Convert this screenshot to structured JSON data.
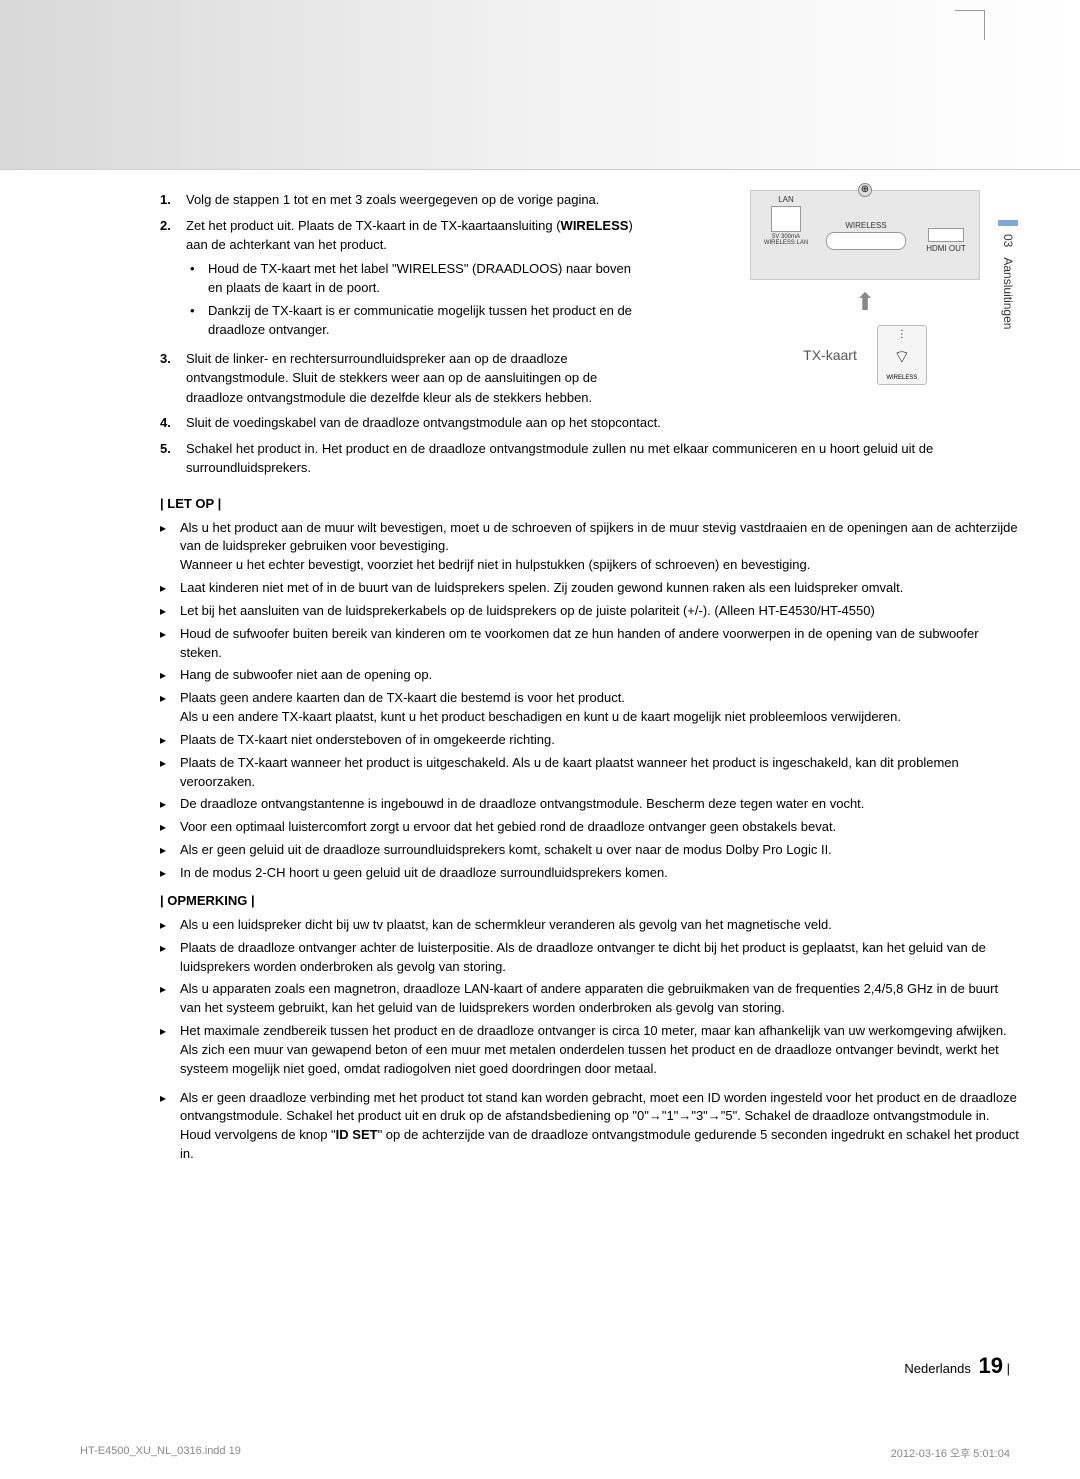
{
  "sideTab": {
    "num": "03",
    "label": "Aansluitingen"
  },
  "steps": [
    {
      "num": "1.",
      "text": "Volg de stappen 1 tot en met 3 zoals weergegeven op de vorige pagina."
    },
    {
      "num": "2.",
      "text_before": "Zet het product uit. Plaats de TX-kaart in de TX-kaartaansluiting (",
      "bold": "WIRELESS",
      "text_after": ") aan de achterkant van het product.",
      "bullets": [
        "Houd de TX-kaart met het label \"WIRELESS\" (DRAADLOOS) naar boven en plaats de kaart in de poort.",
        "Dankzij de TX-kaart is er communicatie mogelijk tussen het product en de draadloze ontvanger."
      ]
    },
    {
      "num": "3.",
      "text": "Sluit de linker- en rechtersurroundluidspreker aan op de draadloze ontvangstmodule. Sluit de stekkers weer aan op de aansluitingen op de draadloze ontvangstmodule die dezelfde kleur als de stekkers hebben."
    },
    {
      "num": "4.",
      "text": "Sluit de voedingskabel van de draadloze ontvangstmodule aan op het stopcontact."
    },
    {
      "num": "5.",
      "text": "Schakel het product in. Het product en de draadloze ontvangstmodule zullen nu met elkaar communiceren en u hoort geluid uit de surroundluidsprekers."
    }
  ],
  "letop": {
    "title": "| LET OP |",
    "items": [
      "Als u het product aan de muur wilt bevestigen, moet u de schroeven of spijkers in de muur stevig vastdraaien en de openingen aan de achterzijde van de luidspreker gebruiken voor bevestiging.\nWanneer u het echter bevestigt, voorziet het bedrijf niet in hulpstukken (spijkers of schroeven) en bevestiging.",
      "Laat kinderen niet met of in de buurt van de luidsprekers spelen. Zij zouden gewond kunnen raken als een luidspreker omvalt.",
      "Let bij het aansluiten van de luidsprekerkabels op de luidsprekers op de juiste polariteit (+/-). (Alleen HT-E4530/HT-4550)",
      "Houd de sufwoofer buiten bereik van kinderen om te voorkomen dat ze hun handen of andere voorwerpen in de opening van de subwoofer steken.",
      "Hang de subwoofer niet aan de opening op.",
      "Plaats geen andere kaarten dan de TX-kaart die bestemd is voor het product.\nAls u een andere TX-kaart plaatst, kunt u het product beschadigen en kunt u de kaart mogelijk niet probleemloos verwijderen.",
      "Plaats de TX-kaart niet ondersteboven of in omgekeerde richting.",
      "Plaats de TX-kaart wanneer het product is uitgeschakeld. Als u de kaart plaatst wanneer het product is ingeschakeld, kan dit problemen veroorzaken.",
      "De draadloze ontvangstantenne is ingebouwd in de draadloze ontvangstmodule. Bescherm deze tegen water en vocht.",
      "Voor een optimaal luistercomfort zorgt u ervoor dat het gebied rond de draadloze ontvanger geen obstakels bevat.",
      "Als er geen geluid uit de draadloze surroundluidsprekers komt, schakelt u over naar de modus Dolby Pro Logic II.",
      "In de modus 2-CH hoort u geen geluid uit de draadloze surroundluidsprekers komen."
    ]
  },
  "opmerking": {
    "title": "| OPMERKING |",
    "items": [
      "Als u een luidspreker dicht bij uw tv plaatst, kan de schermkleur veranderen als gevolg van het magnetische veld.",
      "Plaats de draadloze ontvanger achter de luisterpositie. Als de draadloze ontvanger te dicht bij het product is geplaatst, kan het geluid van de luidsprekers worden onderbroken als gevolg van storing.",
      "Als u apparaten zoals een magnetron, draadloze LAN-kaart of andere apparaten die gebruikmaken van de frequenties 2,4/5,8 GHz in de buurt van het systeem gebruikt, kan het geluid van de luidsprekers worden onderbroken als gevolg van storing.",
      "Het maximale zendbereik tussen het product en de draadloze ontvanger is circa 10 meter, maar kan afhankelijk van uw werkomgeving afwijken. Als zich een muur van gewapend beton of een muur met metalen onderdelen tussen het product en de draadloze ontvanger bevindt, werkt het systeem mogelijk niet goed, omdat radiogolven niet goed doordringen door metaal."
    ],
    "lastItem": {
      "before": "Als er geen draadloze verbinding met het product tot stand kan worden gebracht, moet een ID worden ingesteld voor het product en de draadloze ontvangstmodule. Schakel het product uit en druk op de afstandsbediening op \"0\"→\"1\"→\"3\"→\"5\". Schakel de draadloze ontvangstmodule in. Houd vervolgens de knop \"",
      "bold": "ID SET",
      "after": "\" op de achterzijde van de draadloze ontvangstmodule gedurende 5 seconden ingedrukt en schakel het product in."
    }
  },
  "diagram": {
    "lan": "LAN",
    "wireless": "WIRELESS",
    "sub_label": "5V 300mA\nWIRELESS LAN",
    "hdmi": "HDMI OUT",
    "tx_label": "TX-kaart",
    "wireless_small": "WIRELESS"
  },
  "footer": {
    "lang": "Nederlands",
    "page": "19"
  },
  "print": {
    "left": "HT-E4500_XU_NL_0316.indd   19",
    "right": "2012-03-16   오후 5:01:04"
  }
}
